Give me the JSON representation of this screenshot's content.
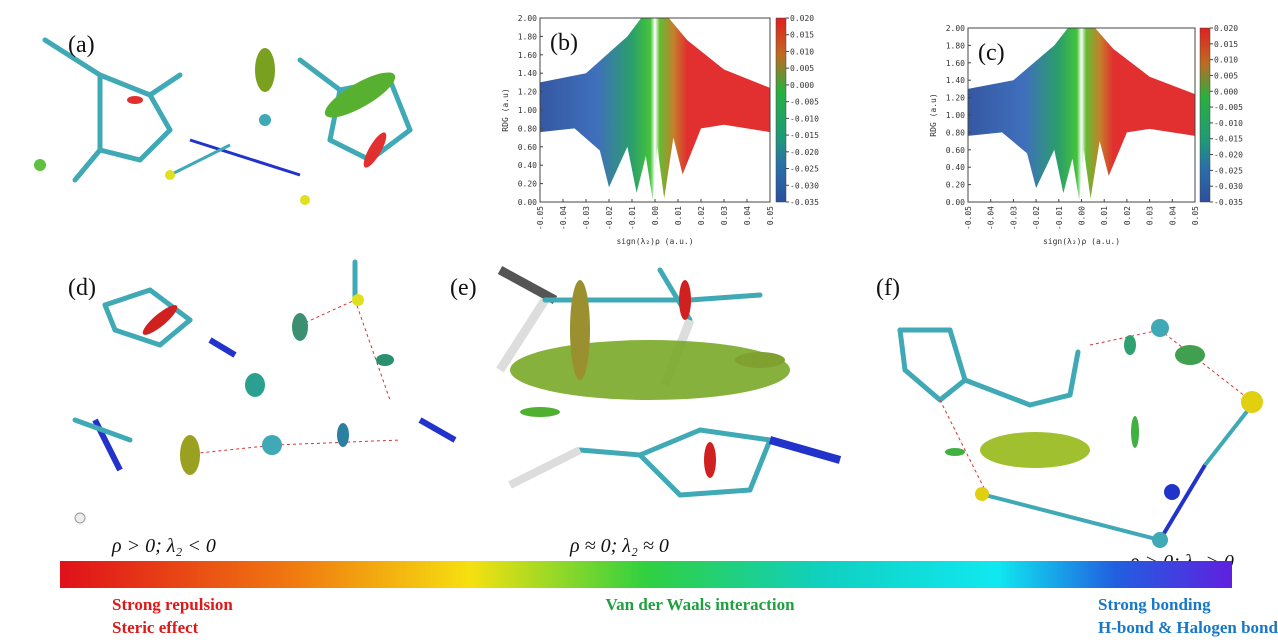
{
  "labels": {
    "a": "(a)",
    "d": "(d)",
    "e": "(e)",
    "f": "(f)"
  },
  "annotations": [
    "ρ > 0; λ₂ < 0",
    "ρ ≈ 0; λ₂ ≈ 0",
    "ρ > 0; λ₂ > 0"
  ],
  "legend": {
    "left": [
      "Strong repulsion",
      "Steric effect"
    ],
    "middle": "Van der Waals interaction",
    "right": [
      "Strong bonding",
      "H-bond & Halogen bond"
    ]
  },
  "chart_data": [
    {
      "type": "scatter",
      "title": "(b)",
      "xlabel": "sign(λ₂)ρ (a.u.)",
      "ylabel": "RDG (a.u)",
      "xlim": [
        -0.05,
        0.05
      ],
      "xticks": [
        {
          "value": -0.05,
          "label": "-0.05"
        },
        {
          "value": -0.04,
          "label": "-0.04"
        },
        {
          "value": -0.03,
          "label": "-0.03"
        },
        {
          "value": -0.02,
          "label": "-0.02"
        },
        {
          "value": -0.01,
          "label": "-0.01"
        },
        {
          "value": 0,
          "label": "0.00"
        },
        {
          "value": 0.01,
          "label": "0.01"
        },
        {
          "value": 0.02,
          "label": "0.02"
        },
        {
          "value": 0.03,
          "label": "0.03"
        },
        {
          "value": 0.04,
          "label": "0.04"
        },
        {
          "value": 0.05,
          "label": "0.05"
        }
      ],
      "ylim": [
        0,
        2
      ],
      "yticks": [
        {
          "value": 0,
          "label": "0.00"
        },
        {
          "value": 0.2,
          "label": "0.20"
        },
        {
          "value": 0.4,
          "label": "0.40"
        },
        {
          "value": 0.6,
          "label": "0.60"
        },
        {
          "value": 0.8,
          "label": "0.80"
        },
        {
          "value": 1,
          "label": "1.00"
        },
        {
          "value": 1.2,
          "label": "1.20"
        },
        {
          "value": 1.4,
          "label": "1.40"
        },
        {
          "value": 1.6,
          "label": "1.60"
        },
        {
          "value": 1.8,
          "label": "1.80"
        },
        {
          "value": 2,
          "label": "2.00"
        }
      ],
      "clim": [
        -0.035,
        0.02
      ],
      "cticks": [
        {
          "value": 0.02,
          "label": "0.020"
        },
        {
          "value": 0.015,
          "label": "0.015"
        },
        {
          "value": 0.01,
          "label": "0.010"
        },
        {
          "value": 0.005,
          "label": "0.005"
        },
        {
          "value": 0,
          "label": "0.000"
        },
        {
          "value": -0.005,
          "label": "-0.005"
        },
        {
          "value": -0.01,
          "label": "-0.010"
        },
        {
          "value": -0.015,
          "label": "-0.015"
        },
        {
          "value": -0.02,
          "label": "-0.020"
        },
        {
          "value": -0.025,
          "label": "-0.025"
        },
        {
          "value": -0.03,
          "label": "-0.030"
        },
        {
          "value": -0.035,
          "label": "-0.035"
        }
      ]
    },
    {
      "type": "scatter",
      "title": "(c)",
      "xlabel": "sign(λ₂)ρ (a.u.)",
      "ylabel": "RDG (a.u)",
      "xlim": [
        -0.05,
        0.05
      ],
      "xticks": [
        {
          "value": -0.05,
          "label": "-0.05"
        },
        {
          "value": -0.04,
          "label": "-0.04"
        },
        {
          "value": -0.03,
          "label": "-0.03"
        },
        {
          "value": -0.02,
          "label": "-0.02"
        },
        {
          "value": -0.01,
          "label": "-0.01"
        },
        {
          "value": 0,
          "label": "0.00"
        },
        {
          "value": 0.01,
          "label": "0.01"
        },
        {
          "value": 0.02,
          "label": "0.02"
        },
        {
          "value": 0.03,
          "label": "0.03"
        },
        {
          "value": 0.04,
          "label": "0.04"
        },
        {
          "value": 0.05,
          "label": "0.05"
        }
      ],
      "ylim": [
        0,
        2
      ],
      "yticks": [
        {
          "value": 0,
          "label": "0.00"
        },
        {
          "value": 0.2,
          "label": "0.20"
        },
        {
          "value": 0.4,
          "label": "0.40"
        },
        {
          "value": 0.6,
          "label": "0.60"
        },
        {
          "value": 0.8,
          "label": "0.80"
        },
        {
          "value": 1,
          "label": "1.00"
        },
        {
          "value": 1.2,
          "label": "1.20"
        },
        {
          "value": 1.4,
          "label": "1.40"
        },
        {
          "value": 1.6,
          "label": "1.60"
        },
        {
          "value": 1.8,
          "label": "1.80"
        },
        {
          "value": 2,
          "label": "2.00"
        }
      ],
      "clim": [
        -0.035,
        0.02
      ],
      "cticks": [
        {
          "value": 0.02,
          "label": "0.020"
        },
        {
          "value": 0.015,
          "label": "0.015"
        },
        {
          "value": 0.01,
          "label": "0.010"
        },
        {
          "value": 0.005,
          "label": "0.005"
        },
        {
          "value": 0,
          "label": "0.000"
        },
        {
          "value": -0.005,
          "label": "-0.005"
        },
        {
          "value": -0.01,
          "label": "-0.010"
        },
        {
          "value": -0.015,
          "label": "-0.015"
        },
        {
          "value": -0.02,
          "label": "-0.020"
        },
        {
          "value": -0.025,
          "label": "-0.025"
        },
        {
          "value": -0.03,
          "label": "-0.030"
        },
        {
          "value": -0.035,
          "label": "-0.035"
        }
      ]
    }
  ]
}
